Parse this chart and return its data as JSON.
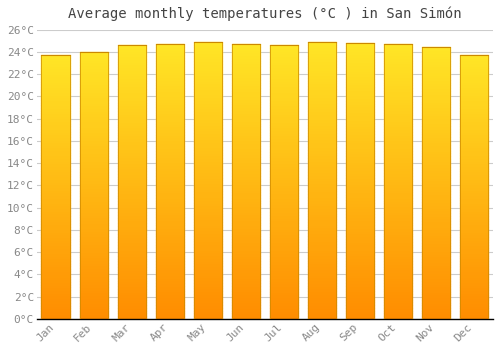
{
  "title": "Average monthly temperatures (°C ) in San Simón",
  "months": [
    "Jan",
    "Feb",
    "Mar",
    "Apr",
    "May",
    "Jun",
    "Jul",
    "Aug",
    "Sep",
    "Oct",
    "Nov",
    "Dec"
  ],
  "temperatures": [
    23.7,
    24.0,
    24.6,
    24.7,
    24.9,
    24.7,
    24.6,
    24.9,
    24.8,
    24.7,
    24.4,
    23.7
  ],
  "bar_color": "#FFA500",
  "bar_color_top": "#FFD050",
  "bar_edge_color": "#CC8800",
  "background_color": "#FFFFFF",
  "grid_color": "#CCCCCC",
  "ylim": [
    0,
    26
  ],
  "yticks": [
    0,
    2,
    4,
    6,
    8,
    10,
    12,
    14,
    16,
    18,
    20,
    22,
    24,
    26
  ],
  "title_fontsize": 10,
  "tick_fontsize": 8,
  "title_color": "#444444",
  "tick_color": "#888888",
  "axis_line_color": "#000000"
}
